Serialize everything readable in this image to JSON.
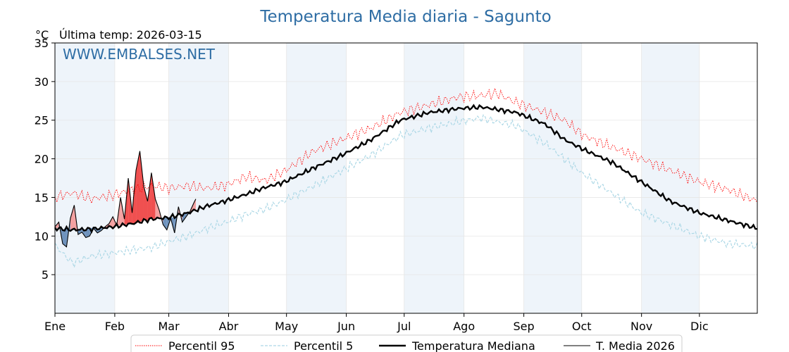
{
  "chart_data": {
    "type": "line",
    "title": "Temperatura Media diaria - Sagunto",
    "unit_label": "°C",
    "subtitle": "Última temp: 2026-03-15",
    "watermark": "WWW.EMBALSES.NET",
    "xlabel": "",
    "ylabel": "",
    "ylim": [
      0,
      35
    ],
    "yticks": [
      5,
      10,
      15,
      20,
      25,
      30,
      35
    ],
    "month_labels": [
      "Ene",
      "Feb",
      "Mar",
      "Abr",
      "May",
      "Jun",
      "Jul",
      "Ago",
      "Sep",
      "Oct",
      "Nov",
      "Dic"
    ],
    "month_start_days": [
      1,
      32,
      60,
      91,
      121,
      152,
      182,
      213,
      244,
      274,
      305,
      335
    ],
    "days_in_year": 365,
    "shaded_months": [
      "Ene",
      "Mar",
      "May",
      "Jul",
      "Sep",
      "Nov"
    ],
    "grid": true,
    "legend_position": "bottom-center",
    "colors": {
      "p95": "#ff0000",
      "p5": "#add8e6",
      "median": "#000000",
      "current": "#000000",
      "above_fill": "#f4a0a0",
      "above_strong": "#f05050",
      "below_fill": "#6f93bd",
      "title": "#2e6da4",
      "band": "#eef4fa"
    },
    "series": [
      {
        "name": "Percentil 95",
        "style": "dotted",
        "anchors_day": [
          1,
          10,
          20,
          31,
          41,
          51,
          60,
          70,
          80,
          90,
          100,
          110,
          120,
          135,
          150,
          165,
          180,
          195,
          210,
          222,
          230,
          240,
          255,
          265,
          275,
          290,
          305,
          320,
          335,
          350,
          365
        ],
        "anchors_value": [
          15,
          15.6,
          14.8,
          15.3,
          16,
          16.5,
          16.2,
          16.5,
          16.2,
          16.6,
          17.7,
          17.2,
          18.4,
          21,
          22.5,
          24,
          26,
          27,
          28,
          28.2,
          28.5,
          27.3,
          26,
          25,
          23,
          21.5,
          20,
          18.5,
          17,
          16,
          14.5
        ]
      },
      {
        "name": "Percentil 5",
        "style": "dashed",
        "anchors_day": [
          1,
          10,
          20,
          31,
          41,
          51,
          60,
          70,
          80,
          90,
          100,
          110,
          120,
          135,
          150,
          165,
          180,
          195,
          210,
          222,
          230,
          240,
          255,
          265,
          275,
          290,
          305,
          320,
          335,
          350,
          365
        ],
        "anchors_value": [
          8.8,
          6.5,
          7.4,
          7.8,
          8.2,
          8.5,
          9.3,
          10,
          11,
          11.8,
          12.8,
          13.5,
          14.6,
          16.5,
          18.5,
          20.5,
          23,
          24,
          24.8,
          25.3,
          24.8,
          24.3,
          22,
          20,
          18,
          15.5,
          13,
          11.5,
          10,
          9,
          8.7
        ]
      },
      {
        "name": "Temperatura Mediana",
        "style": "solid-thick",
        "anchors_day": [
          1,
          10,
          20,
          31,
          41,
          51,
          60,
          70,
          80,
          90,
          100,
          110,
          120,
          135,
          150,
          165,
          180,
          195,
          210,
          222,
          230,
          240,
          255,
          265,
          275,
          290,
          305,
          320,
          335,
          350,
          365
        ],
        "anchors_value": [
          11,
          10.8,
          10.9,
          11.2,
          11.6,
          12.2,
          12.4,
          13,
          13.9,
          14.6,
          15.4,
          16.3,
          17,
          18.8,
          20.5,
          22.5,
          25,
          26,
          26.5,
          26.7,
          26.4,
          26,
          24.5,
          22.5,
          21.2,
          19.5,
          17,
          14.5,
          13,
          12,
          11
        ]
      },
      {
        "name": "T. Media 2026",
        "style": "solid-thin",
        "x": [
          1,
          3,
          5,
          7,
          9,
          11,
          13,
          15,
          17,
          19,
          21,
          23,
          25,
          27,
          29,
          31,
          33,
          35,
          37,
          39,
          41,
          43,
          45,
          47,
          49,
          51,
          53,
          55,
          57,
          59,
          61,
          63,
          65,
          67,
          69,
          71,
          73,
          74
        ],
        "y": [
          11.2,
          11.8,
          9,
          8.6,
          12.3,
          14,
          10.2,
          10.5,
          9.8,
          10,
          11,
          10.4,
          10.7,
          11.2,
          11.6,
          12.5,
          11.4,
          15,
          12.2,
          17.5,
          13,
          18.5,
          21,
          16.5,
          14.5,
          18.2,
          14.8,
          13.4,
          11.5,
          10.8,
          12.3,
          10.4,
          13.8,
          11.8,
          12.5,
          13.2,
          14.3,
          14.8
        ]
      }
    ]
  },
  "legend": {
    "items": [
      "Percentil 95",
      "Percentil 5",
      "Temperatura Mediana",
      "T. Media 2026"
    ]
  }
}
